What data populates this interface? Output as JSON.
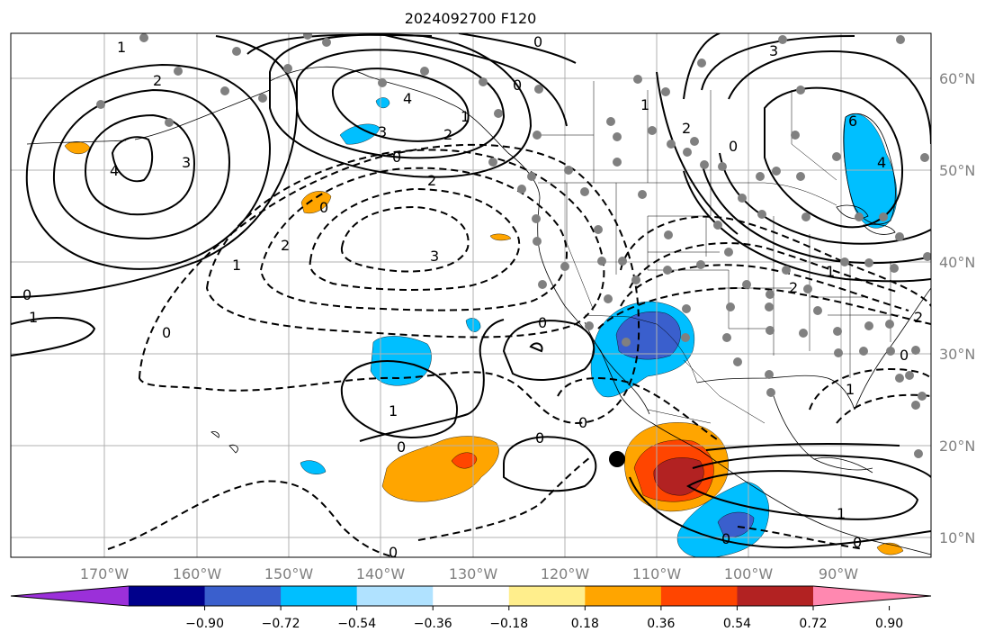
{
  "title": "2024092700 F120",
  "lon_labels": [
    "170°W",
    "160°W",
    "150°W",
    "140°W",
    "130°W",
    "120°W",
    "110°W",
    "100°W",
    "90°W"
  ],
  "lat_labels": [
    "60°N",
    "50°N",
    "40°N",
    "30°N",
    "20°N",
    "10°N"
  ],
  "colorbar": {
    "colors": [
      "#9b30d9",
      "#00008b",
      "#3a5fcd",
      "#00bfff",
      "#b0e2ff",
      "#ffffff",
      "#ffee8c",
      "#ffa500",
      "#ff4500",
      "#b22222",
      "#ff88b0"
    ],
    "tick_labels": [
      "−0.90",
      "−0.72",
      "−0.54",
      "−0.36",
      "−0.18",
      "0.18",
      "0.36",
      "0.54",
      "0.72",
      "0.90"
    ]
  },
  "contour_labels": {
    "left_top_1": "1",
    "left_2": "2",
    "left_4": "4",
    "left_3": "3",
    "left_0": "0",
    "left_neg1": "1",
    "alaska_3": "3",
    "alaska_4": "4",
    "alaska_2": "2",
    "alaska_1": "1",
    "alaska_0a": "0",
    "alaska_0b": "0",
    "top_0": "0",
    "pac_neg0": "0",
    "pac_neg2a": "2",
    "pac_neg2b": "2",
    "pac_neg1": "1",
    "pac_neg3": "3",
    "pac_0": "0",
    "sub_1": "1",
    "sub_0": "0",
    "mid_0a": "0",
    "mid_0b": "0",
    "mid_neg0": "0",
    "bot_0": "0",
    "ne_3": "3",
    "ne_1": "1",
    "ne_2": "2",
    "ne_4": "4",
    "ne_6": "6",
    "ne_0": "0",
    "us_neg2": "2",
    "us_neg1": "1",
    "gulf_0": "0",
    "east_1": "1",
    "east_2": "2",
    "trop_1": "1",
    "trop_0": "0",
    "trop_0b": "0"
  }
}
